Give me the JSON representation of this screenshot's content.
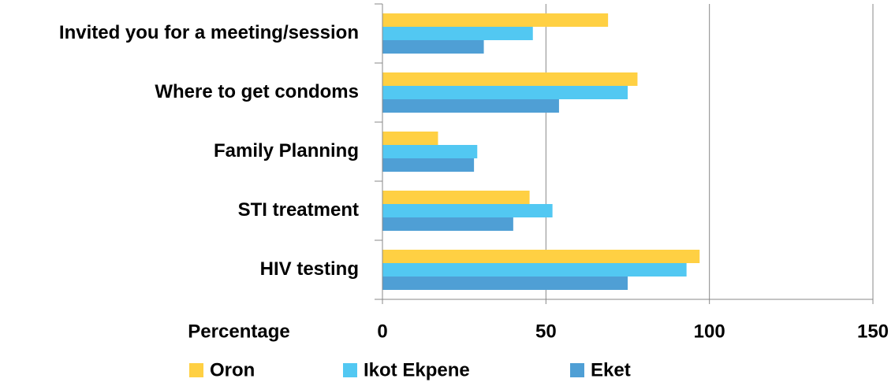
{
  "chart_data": {
    "type": "hbar",
    "categories": [
      "Invited you for a meeting/session",
      "Where to get condoms",
      "Family Planning",
      "STI treatment",
      "HIV testing"
    ],
    "series": [
      {
        "name": "Oron",
        "color": "#ffd043",
        "values": [
          69,
          78,
          17,
          45,
          97
        ]
      },
      {
        "name": "Ikot Ekpene",
        "color": "#52c8f2",
        "values": [
          46,
          75,
          29,
          52,
          93
        ]
      },
      {
        "name": "Eket",
        "color": "#4f9fd5",
        "values": [
          31,
          54,
          28,
          40,
          75
        ]
      }
    ],
    "xlabel": "Percentage",
    "xlim": [
      0,
      150
    ],
    "xticks": [
      0,
      50,
      100,
      150
    ],
    "grid": true,
    "legend": "bottom"
  }
}
